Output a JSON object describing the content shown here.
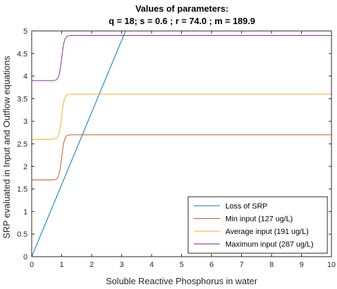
{
  "chart_data": {
    "type": "line",
    "title": "Values of parameters:",
    "subtitle": "q = 18; s = 0.6 ; r = 74.0 ; m = 189.9",
    "xlabel": "Soluble Reactive Phosphorus in water",
    "ylabel": "SRP evaluated in Input and Outflow equations",
    "xlim": [
      0,
      10
    ],
    "ylim": [
      0,
      5
    ],
    "xticks": [
      "0",
      "1",
      "2",
      "3",
      "4",
      "5",
      "6",
      "7",
      "8",
      "9",
      "10"
    ],
    "yticks": [
      "0",
      "0.5",
      "1",
      "1.5",
      "2",
      "2.5",
      "3",
      "3.5",
      "4",
      "4.5",
      "5"
    ],
    "grid": false,
    "legend_position": "bottom-right",
    "series": [
      {
        "name": "Loss of SRP",
        "color": "#0072BD",
        "kind": "linear",
        "slope": 1.6,
        "x": [
          0,
          3.13
        ],
        "y": [
          0,
          5
        ]
      },
      {
        "name": "Min input (127 ug/L)",
        "color": "#D95319",
        "kind": "sigmoid",
        "low": 1.7,
        "high": 2.7,
        "midpoint": 1.0,
        "x": [
          0,
          0.8,
          1.0,
          1.2,
          1.5,
          10
        ],
        "y": [
          1.7,
          1.72,
          2.2,
          2.68,
          2.7,
          2.7
        ]
      },
      {
        "name": "Average input (191 ug/L)",
        "color": "#EDB120",
        "kind": "sigmoid",
        "low": 2.6,
        "high": 3.6,
        "midpoint": 1.0,
        "x": [
          0,
          0.8,
          1.0,
          1.2,
          1.5,
          10
        ],
        "y": [
          2.6,
          2.62,
          3.1,
          3.58,
          3.6,
          3.6
        ]
      },
      {
        "name": "Maximum input (287 ug/L)",
        "color": "#7E2F8E",
        "kind": "sigmoid",
        "low": 3.9,
        "high": 4.9,
        "midpoint": 1.0,
        "x": [
          0,
          0.8,
          1.0,
          1.2,
          1.5,
          10
        ],
        "y": [
          3.9,
          3.92,
          4.4,
          4.88,
          4.9,
          4.9
        ]
      }
    ]
  }
}
